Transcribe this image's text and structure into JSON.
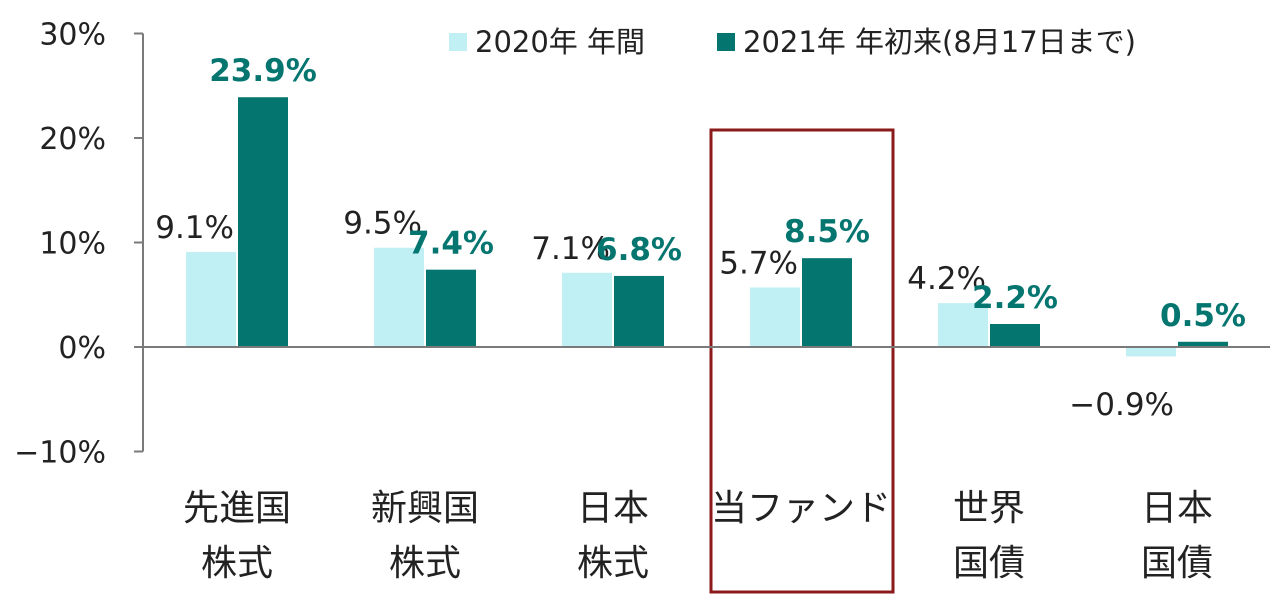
{
  "chart_data": {
    "type": "bar",
    "categories": [
      [
        "先進国",
        "株式"
      ],
      [
        "新興国",
        "株式"
      ],
      [
        "日本",
        "株式"
      ],
      [
        "当ファンド"
      ],
      [
        "世界",
        "国債"
      ],
      [
        "日本",
        "国債"
      ]
    ],
    "series": [
      {
        "name": "2020年 年間",
        "values": [
          9.1,
          9.5,
          7.1,
          5.7,
          4.2,
          -0.9
        ],
        "labels": [
          "9.1%",
          "9.5%",
          "7.1%",
          "5.7%",
          "4.2%",
          "−0.9%"
        ],
        "color": "#c0f0f4"
      },
      {
        "name": "2021年 年初来(8月17日まで)",
        "values": [
          23.9,
          7.4,
          6.8,
          8.5,
          2.2,
          0.5
        ],
        "labels": [
          "23.9%",
          "7.4%",
          "6.8%",
          "8.5%",
          "2.2%",
          "0.5%"
        ],
        "color": "#057570"
      }
    ],
    "y_ticks": [
      "30%",
      "20%",
      "10%",
      "0%",
      "−10%"
    ],
    "ylim": [
      -10,
      30
    ],
    "highlight_category_index": 3,
    "highlight_color": "#8b1a1a",
    "legend_position": "top-right",
    "grid": false,
    "title": "",
    "xlabel": "",
    "ylabel": ""
  }
}
